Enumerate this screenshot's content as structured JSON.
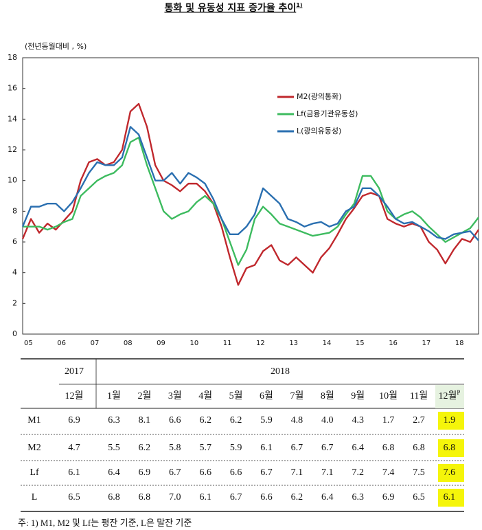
{
  "chart_data": {
    "type": "line",
    "title": "통화 및 유동성 지표 증가율 추이",
    "title_note": "1)",
    "y_label": "(전년동월대비 , %)",
    "categories": [
      "05",
      null,
      null,
      null,
      "06",
      null,
      null,
      null,
      "07",
      null,
      null,
      null,
      "08",
      null,
      null,
      null,
      "09",
      null,
      null,
      null,
      "10",
      null,
      null,
      null,
      "11",
      null,
      null,
      null,
      "12",
      null,
      null,
      null,
      "13",
      null,
      null,
      null,
      "14",
      null,
      null,
      null,
      "15",
      null,
      null,
      null,
      "16",
      null,
      null,
      null,
      "17",
      null,
      null,
      null,
      "18",
      null,
      null,
      null
    ],
    "series": [
      {
        "name": "M2(광의통화)",
        "color": "#c0282d",
        "values": [
          6.2,
          7.5,
          6.6,
          7.2,
          6.8,
          7.4,
          8.0,
          10.0,
          11.2,
          11.4,
          11.0,
          11.2,
          12.0,
          14.5,
          15.0,
          13.5,
          11.0,
          10.0,
          9.7,
          9.3,
          9.8,
          9.8,
          9.3,
          8.5,
          7.0,
          5.0,
          3.2,
          4.3,
          4.5,
          5.4,
          5.8,
          4.8,
          4.5,
          5.0,
          4.5,
          4.0,
          5.0,
          5.6,
          6.5,
          7.5,
          8.2,
          9.0,
          9.2,
          9.0,
          7.5,
          7.2,
          7.0,
          7.2,
          7.0,
          6.0,
          5.5,
          4.6,
          5.5,
          6.2,
          6.0,
          6.8
        ]
      },
      {
        "name": "Lf(금융기관유동성)",
        "color": "#3dbb5f",
        "values": [
          7.0,
          7.0,
          7.0,
          6.8,
          7.0,
          7.3,
          7.5,
          9.0,
          9.5,
          10.0,
          10.3,
          10.5,
          11.0,
          12.5,
          12.8,
          11.0,
          9.5,
          8.0,
          7.5,
          7.8,
          8.0,
          8.6,
          9.0,
          8.5,
          7.5,
          6.0,
          4.5,
          5.5,
          7.5,
          8.3,
          7.8,
          7.2,
          7.0,
          6.8,
          6.6,
          6.4,
          6.5,
          6.6,
          7.0,
          7.8,
          8.5,
          10.3,
          10.3,
          9.5,
          8.0,
          7.5,
          7.8,
          8.0,
          7.6,
          7.0,
          6.5,
          6.0,
          6.3,
          6.6,
          6.9,
          7.6
        ]
      },
      {
        "name": "L(광의유동성)",
        "color": "#2a6fb0",
        "values": [
          7.0,
          8.3,
          8.3,
          8.5,
          8.5,
          8.0,
          8.6,
          9.5,
          10.5,
          11.2,
          11.0,
          11.0,
          11.5,
          13.5,
          13.0,
          11.5,
          10.0,
          10.0,
          10.5,
          9.8,
          10.5,
          10.2,
          9.8,
          8.8,
          7.5,
          6.5,
          6.5,
          7.0,
          7.8,
          9.5,
          9.0,
          8.5,
          7.5,
          7.3,
          7.0,
          7.2,
          7.3,
          7.0,
          7.2,
          8.0,
          8.3,
          9.5,
          9.5,
          9.0,
          8.3,
          7.5,
          7.2,
          7.3,
          7.0,
          6.7,
          6.3,
          6.2,
          6.5,
          6.6,
          6.7,
          6.1
        ]
      }
    ],
    "ylim": [
      0,
      18
    ],
    "yticks": [
      0,
      2,
      4,
      6,
      8,
      10,
      12,
      14,
      16,
      18
    ],
    "legend": "upper center"
  },
  "table": {
    "year_headers": [
      "2017",
      "2018"
    ],
    "month_headers": [
      "12월",
      "1월",
      "2월",
      "3월",
      "4월",
      "5월",
      "6월",
      "7월",
      "8월",
      "9월",
      "10월",
      "11월",
      "12월"
    ],
    "month_note": "P",
    "highlight_color": "#f5f50a",
    "rows": [
      [
        "M1",
        "6.9",
        "6.3",
        "8.1",
        "6.6",
        "6.2",
        "6.2",
        "5.9",
        "4.8",
        "4.0",
        "4.3",
        "1.7",
        "2.7",
        "1.9"
      ],
      [
        "M2",
        "4.7",
        "5.5",
        "6.2",
        "5.8",
        "5.7",
        "5.9",
        "6.1",
        "6.7",
        "6.7",
        "6.4",
        "6.8",
        "6.8",
        "6.8"
      ],
      [
        "Lf",
        "6.1",
        "6.4",
        "6.9",
        "6.7",
        "6.6",
        "6.6",
        "6.7",
        "7.1",
        "7.1",
        "7.2",
        "7.4",
        "7.5",
        "7.6"
      ],
      [
        "L",
        "6.5",
        "6.8",
        "6.8",
        "7.0",
        "6.1",
        "6.7",
        "6.6",
        "6.2",
        "6.4",
        "6.3",
        "6.9",
        "6.5",
        "6.1"
      ]
    ]
  },
  "footnote": "주: 1) M1, M2 및 Lf는 평잔 기준, L은 말잔 기준"
}
